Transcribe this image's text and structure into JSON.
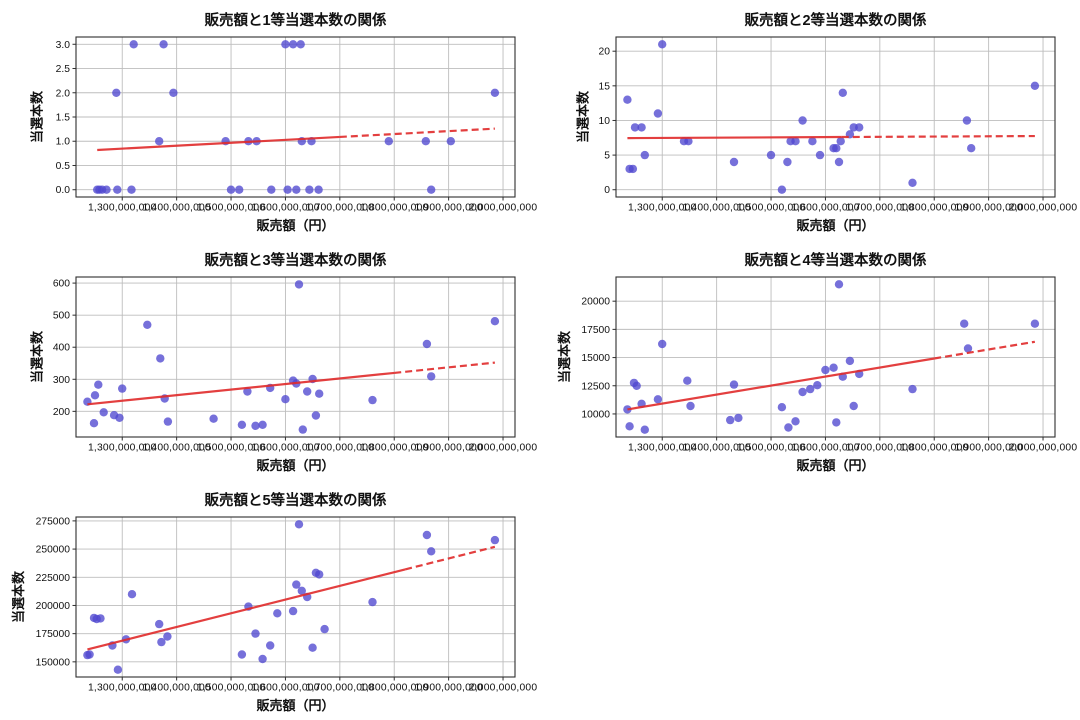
{
  "figure": {
    "background": "#ffffff",
    "rows": 3,
    "cols": 2
  },
  "style": {
    "point_color": "#4f48cf",
    "point_opacity": 0.78,
    "trend_color": "#e02a2a",
    "grid_color": "#bdbdbd",
    "spine_color": "#2e2e2e",
    "text_color": "#111111",
    "background": "#ffffff"
  },
  "chart_data": [
    {
      "type": "scatter",
      "title": "販売額と1等当選本数の関係",
      "xlabel": "販売額（円）",
      "ylabel": "当選本数",
      "legend": null,
      "grid": true,
      "xlim": [
        1215000000,
        2022000000
      ],
      "ylim": [
        -0.15,
        3.15
      ],
      "xticks": [
        1300000000,
        1400000000,
        1500000000,
        1600000000,
        1700000000,
        1800000000,
        1900000000,
        2000000000
      ],
      "xtick_labels": [
        "1,300,000,000",
        "1,400,000,000",
        "1,500,000,000",
        "1,600,000,000",
        "1,700,000,000",
        "1,800,000,000",
        "1,900,000,000",
        "2,000,000,000"
      ],
      "yticks": [
        0,
        0.5,
        1,
        1.5,
        2,
        2.5,
        3
      ],
      "ytick_labels": [
        "0.0",
        "0.5",
        "1.0",
        "1.5",
        "2.0",
        "2.5",
        "3.0"
      ],
      "points": [
        [
          1254000000,
          0
        ],
        [
          1258000000,
          0
        ],
        [
          1263000000,
          0
        ],
        [
          1271000000,
          0
        ],
        [
          1289000000,
          2
        ],
        [
          1291000000,
          0
        ],
        [
          1317000000,
          0
        ],
        [
          1321000000,
          3
        ],
        [
          1368000000,
          1
        ],
        [
          1376000000,
          3
        ],
        [
          1394000000,
          2
        ],
        [
          1490000000,
          1
        ],
        [
          1500000000,
          0
        ],
        [
          1515000000,
          0
        ],
        [
          1532000000,
          1
        ],
        [
          1547000000,
          1
        ],
        [
          1574000000,
          0
        ],
        [
          1600000000,
          3
        ],
        [
          1604000000,
          0
        ],
        [
          1614000000,
          3
        ],
        [
          1620000000,
          0
        ],
        [
          1628000000,
          3
        ],
        [
          1630000000,
          1
        ],
        [
          1644000000,
          0
        ],
        [
          1648000000,
          1
        ],
        [
          1661000000,
          0
        ],
        [
          1790000000,
          1
        ],
        [
          1858000000,
          1
        ],
        [
          1868000000,
          0
        ],
        [
          1904000000,
          1
        ],
        [
          1985000000,
          2
        ]
      ],
      "trend": {
        "x1": 1254000000,
        "y1": 0.82,
        "x2": 1985000000,
        "y2": 1.26,
        "dash_from": 1700000000
      }
    },
    {
      "type": "scatter",
      "title": "販売額と2等当選本数の関係",
      "xlabel": "販売額（円）",
      "ylabel": "当選本数",
      "legend": null,
      "grid": true,
      "xlim": [
        1215000000,
        2022000000
      ],
      "ylim": [
        -1.05,
        22.05
      ],
      "xticks": [
        1300000000,
        1400000000,
        1500000000,
        1600000000,
        1700000000,
        1800000000,
        1900000000,
        2000000000
      ],
      "xtick_labels": [
        "1,300,000,000",
        "1,400,000,000",
        "1,500,000,000",
        "1,600,000,000",
        "1,700,000,000",
        "1,800,000,000",
        "1,900,000,000",
        "2,000,000,000"
      ],
      "yticks": [
        0,
        5,
        10,
        15,
        20
      ],
      "ytick_labels": [
        "0",
        "5",
        "10",
        "15",
        "20"
      ],
      "points": [
        [
          1236000000,
          13
        ],
        [
          1240000000,
          3
        ],
        [
          1246000000,
          3
        ],
        [
          1250000000,
          9
        ],
        [
          1262000000,
          9
        ],
        [
          1268000000,
          5
        ],
        [
          1292000000,
          11
        ],
        [
          1300000000,
          21
        ],
        [
          1340000000,
          7
        ],
        [
          1348000000,
          7
        ],
        [
          1432000000,
          4
        ],
        [
          1500000000,
          5
        ],
        [
          1520000000,
          0
        ],
        [
          1530000000,
          4
        ],
        [
          1536000000,
          7
        ],
        [
          1545000000,
          7
        ],
        [
          1558000000,
          10
        ],
        [
          1576000000,
          7
        ],
        [
          1590000000,
          5
        ],
        [
          1615000000,
          6
        ],
        [
          1620000000,
          6
        ],
        [
          1625000000,
          4
        ],
        [
          1628000000,
          7
        ],
        [
          1632000000,
          14
        ],
        [
          1645000000,
          8
        ],
        [
          1652000000,
          9
        ],
        [
          1662000000,
          9
        ],
        [
          1760000000,
          1
        ],
        [
          1860000000,
          10
        ],
        [
          1868000000,
          6
        ],
        [
          1985000000,
          15
        ]
      ],
      "trend": {
        "x1": 1236000000,
        "y1": 7.45,
        "x2": 1985000000,
        "y2": 7.75,
        "dash_from": 1630000000
      }
    },
    {
      "type": "scatter",
      "title": "販売額と3等当選本数の関係",
      "xlabel": "販売額（円）",
      "ylabel": "当選本数",
      "legend": null,
      "grid": true,
      "xlim": [
        1215000000,
        2022000000
      ],
      "ylim": [
        120,
        619
      ],
      "xticks": [
        1300000000,
        1400000000,
        1500000000,
        1600000000,
        1700000000,
        1800000000,
        1900000000,
        2000000000
      ],
      "xtick_labels": [
        "1,300,000,000",
        "1,400,000,000",
        "1,500,000,000",
        "1,600,000,000",
        "1,700,000,000",
        "1,800,000,000",
        "1,900,000,000",
        "2,000,000,000"
      ],
      "yticks": [
        200,
        300,
        400,
        500,
        600
      ],
      "ytick_labels": [
        "200",
        "300",
        "400",
        "500",
        "600"
      ],
      "points": [
        [
          1236000000,
          230
        ],
        [
          1248000000,
          163
        ],
        [
          1250000000,
          250
        ],
        [
          1256000000,
          283
        ],
        [
          1266000000,
          197
        ],
        [
          1285000000,
          188
        ],
        [
          1295000000,
          180
        ],
        [
          1300000000,
          271
        ],
        [
          1346000000,
          470
        ],
        [
          1370000000,
          365
        ],
        [
          1378000000,
          240
        ],
        [
          1384000000,
          168
        ],
        [
          1468000000,
          177
        ],
        [
          1520000000,
          158
        ],
        [
          1530000000,
          262
        ],
        [
          1545000000,
          155
        ],
        [
          1558000000,
          158
        ],
        [
          1572000000,
          273
        ],
        [
          1600000000,
          238
        ],
        [
          1614000000,
          296
        ],
        [
          1620000000,
          287
        ],
        [
          1625000000,
          596
        ],
        [
          1632000000,
          143
        ],
        [
          1640000000,
          262
        ],
        [
          1650000000,
          301
        ],
        [
          1656000000,
          187
        ],
        [
          1662000000,
          255
        ],
        [
          1760000000,
          235
        ],
        [
          1860000000,
          410
        ],
        [
          1868000000,
          309
        ],
        [
          1985000000,
          481
        ]
      ],
      "trend": {
        "x1": 1236000000,
        "y1": 222,
        "x2": 1985000000,
        "y2": 352,
        "dash_from": 1800000000
      }
    },
    {
      "type": "scatter",
      "title": "販売額と4等当選本数の関係",
      "xlabel": "販売額（円）",
      "ylabel": "当選本数",
      "legend": null,
      "grid": true,
      "xlim": [
        1215000000,
        2022000000
      ],
      "ylim": [
        7955,
        22145
      ],
      "xticks": [
        1300000000,
        1400000000,
        1500000000,
        1600000000,
        1700000000,
        1800000000,
        1900000000,
        2000000000
      ],
      "xtick_labels": [
        "1,300,000,000",
        "1,400,000,000",
        "1,500,000,000",
        "1,600,000,000",
        "1,700,000,000",
        "1,800,000,000",
        "1,900,000,000",
        "2,000,000,000"
      ],
      "yticks": [
        10000,
        12500,
        15000,
        17500,
        20000
      ],
      "ytick_labels": [
        "10000",
        "12500",
        "15000",
        "17500",
        "20000"
      ],
      "points": [
        [
          1236000000,
          10400
        ],
        [
          1240000000,
          8900
        ],
        [
          1248000000,
          12750
        ],
        [
          1253000000,
          12500
        ],
        [
          1262000000,
          10900
        ],
        [
          1268000000,
          8600
        ],
        [
          1292000000,
          11300
        ],
        [
          1300000000,
          16200
        ],
        [
          1346000000,
          12950
        ],
        [
          1352000000,
          10700
        ],
        [
          1425000000,
          9450
        ],
        [
          1432000000,
          12600
        ],
        [
          1440000000,
          9650
        ],
        [
          1520000000,
          10600
        ],
        [
          1532000000,
          8800
        ],
        [
          1545000000,
          9350
        ],
        [
          1558000000,
          11950
        ],
        [
          1572000000,
          12200
        ],
        [
          1585000000,
          12550
        ],
        [
          1600000000,
          13900
        ],
        [
          1615000000,
          14100
        ],
        [
          1620000000,
          9250
        ],
        [
          1625000000,
          21500
        ],
        [
          1632000000,
          13300
        ],
        [
          1645000000,
          14700
        ],
        [
          1652000000,
          10700
        ],
        [
          1662000000,
          13550
        ],
        [
          1760000000,
          12200
        ],
        [
          1855000000,
          18000
        ],
        [
          1862000000,
          15800
        ],
        [
          1985000000,
          18000
        ]
      ],
      "trend": {
        "x1": 1236000000,
        "y1": 10400,
        "x2": 1985000000,
        "y2": 16400,
        "dash_from": 1800000000
      }
    },
    {
      "type": "scatter",
      "title": "販売額と5等当選本数の関係",
      "xlabel": "販売額（円）",
      "ylabel": "当選本数",
      "legend": null,
      "grid": true,
      "xlim": [
        1215000000,
        2022000000
      ],
      "ylim": [
        136550,
        278450
      ],
      "xticks": [
        1300000000,
        1400000000,
        1500000000,
        1600000000,
        1700000000,
        1800000000,
        1900000000,
        2000000000
      ],
      "xtick_labels": [
        "1,300,000,000",
        "1,400,000,000",
        "1,500,000,000",
        "1,600,000,000",
        "1,700,000,000",
        "1,800,000,000",
        "1,900,000,000",
        "2,000,000,000"
      ],
      "yticks": [
        150000,
        175000,
        200000,
        225000,
        250000,
        275000
      ],
      "ytick_labels": [
        "150000",
        "175000",
        "200000",
        "225000",
        "250000",
        "275000"
      ],
      "points": [
        [
          1236000000,
          156000
        ],
        [
          1240000000,
          156500
        ],
        [
          1248000000,
          189000
        ],
        [
          1253000000,
          188000
        ],
        [
          1260000000,
          188500
        ],
        [
          1282000000,
          164500
        ],
        [
          1292000000,
          143000
        ],
        [
          1307000000,
          170000
        ],
        [
          1318000000,
          210000
        ],
        [
          1368000000,
          183500
        ],
        [
          1372000000,
          167500
        ],
        [
          1383000000,
          172500
        ],
        [
          1520000000,
          156500
        ],
        [
          1532000000,
          199000
        ],
        [
          1545000000,
          175000
        ],
        [
          1558000000,
          152500
        ],
        [
          1572000000,
          164500
        ],
        [
          1585000000,
          193000
        ],
        [
          1614000000,
          195000
        ],
        [
          1620000000,
          218500
        ],
        [
          1625000000,
          272000
        ],
        [
          1630000000,
          213000
        ],
        [
          1640000000,
          207500
        ],
        [
          1650000000,
          162500
        ],
        [
          1656000000,
          229000
        ],
        [
          1662000000,
          227500
        ],
        [
          1672000000,
          179000
        ],
        [
          1760000000,
          203000
        ],
        [
          1860000000,
          262500
        ],
        [
          1868000000,
          248000
        ],
        [
          1985000000,
          258000
        ]
      ],
      "trend": {
        "x1": 1236000000,
        "y1": 161000,
        "x2": 1985000000,
        "y2": 252000,
        "dash_from": 1820000000
      }
    }
  ]
}
